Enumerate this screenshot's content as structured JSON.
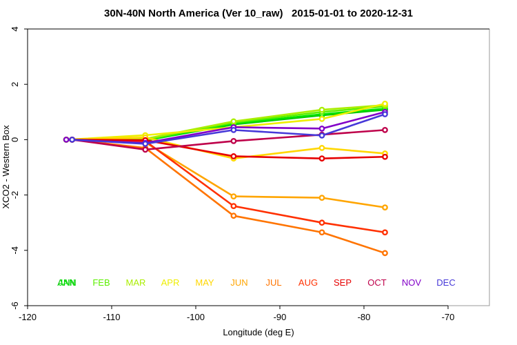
{
  "chart_data": {
    "type": "line",
    "title": "30N-40N North America (Ver 10_raw)   2015-01-01 to 2020-12-31",
    "xlabel": "Longitude (deg E)",
    "ylabel": "XCO2 - Western Box",
    "xlim": [
      -120,
      -65
    ],
    "ylim": [
      -6,
      4
    ],
    "x_ticks": [
      -120,
      -110,
      -100,
      -90,
      -80,
      -70
    ],
    "y_ticks": [
      4,
      2,
      0,
      -2,
      -4,
      -6
    ],
    "grid": false,
    "legend_position": "bottom-inside-row",
    "axis_color": "#000000",
    "box_color": "#9a9a9a",
    "marker": "open-circle-white-fill",
    "series": [
      {
        "name": "ANN",
        "color": "#00c400",
        "legend_slot": 0,
        "x": [
          -115.4,
          -106,
          -95.5,
          -85,
          -77.5
        ],
        "values": [
          0,
          -0.03,
          0.55,
          0.88,
          1.08
        ]
      },
      {
        "name": "JAN",
        "color": "#00e400",
        "legend_slot": 0,
        "x": [
          -115.4,
          -106,
          -95.5,
          -85,
          -77.5
        ],
        "values": [
          0,
          -0.03,
          0.58,
          0.92,
          1.12
        ]
      },
      {
        "name": "FEB",
        "color": "#5cf000",
        "legend_slot": 1,
        "x": [
          -115.4,
          -106,
          -95.5,
          -85,
          -77.5
        ],
        "values": [
          0,
          0.0,
          0.62,
          1.0,
          1.2
        ]
      },
      {
        "name": "MAR",
        "color": "#aaee00",
        "legend_slot": 2,
        "x": [
          -115.4,
          -106,
          -95.5,
          -85,
          -77.5
        ],
        "values": [
          0,
          0.03,
          0.66,
          1.08,
          1.25
        ]
      },
      {
        "name": "APR",
        "color": "#eeee00",
        "legend_slot": 3,
        "x": [
          -115.4,
          -106,
          -95.5,
          -85,
          -77.5
        ],
        "values": [
          0,
          0.16,
          0.45,
          0.75,
          1.3
        ]
      },
      {
        "name": "MAY",
        "color": "#ffd700",
        "legend_slot": 4,
        "x": [
          -115.4,
          -106,
          -95.5,
          -85,
          -77.5
        ],
        "values": [
          0,
          0.08,
          -0.68,
          -0.3,
          -0.5
        ]
      },
      {
        "name": "JUN",
        "color": "#ffa500",
        "legend_slot": 5,
        "x": [
          -114.7,
          -106,
          -95.5,
          -85,
          -77.5
        ],
        "values": [
          0,
          -0.1,
          -2.05,
          -2.1,
          -2.45
        ]
      },
      {
        "name": "JUL",
        "color": "#ff7400",
        "legend_slot": 6,
        "x": [
          -114.7,
          -106,
          -95.5,
          -85,
          -77.5
        ],
        "values": [
          0,
          -0.3,
          -2.75,
          -3.35,
          -4.1
        ]
      },
      {
        "name": "AUG",
        "color": "#ff3000",
        "legend_slot": 7,
        "x": [
          -114.7,
          -106,
          -95.5,
          -85,
          -77.5
        ],
        "values": [
          0,
          -0.05,
          -2.4,
          -3.0,
          -3.35
        ]
      },
      {
        "name": "SEP",
        "color": "#e60000",
        "legend_slot": 8,
        "x": [
          -114.7,
          -106,
          -95.5,
          -85,
          -77.5
        ],
        "values": [
          0,
          -0.02,
          -0.6,
          -0.68,
          -0.62
        ]
      },
      {
        "name": "OCT",
        "color": "#be004a",
        "legend_slot": 9,
        "x": [
          -114.7,
          -106,
          -95.5,
          -85,
          -77.5
        ],
        "values": [
          0,
          -0.36,
          -0.05,
          0.18,
          0.35
        ]
      },
      {
        "name": "NOV",
        "color": "#8200c8",
        "legend_slot": 10,
        "x": [
          -115.4,
          -106,
          -95.5,
          -85,
          -77.5
        ],
        "values": [
          0,
          -0.12,
          0.45,
          0.4,
          1.0
        ]
      },
      {
        "name": "DEC",
        "color": "#4638d8",
        "legend_slot": 11,
        "x": [
          -114.7,
          -106,
          -95.5,
          -85,
          -77.5
        ],
        "values": [
          0,
          -0.15,
          0.35,
          0.15,
          0.92
        ]
      }
    ]
  }
}
